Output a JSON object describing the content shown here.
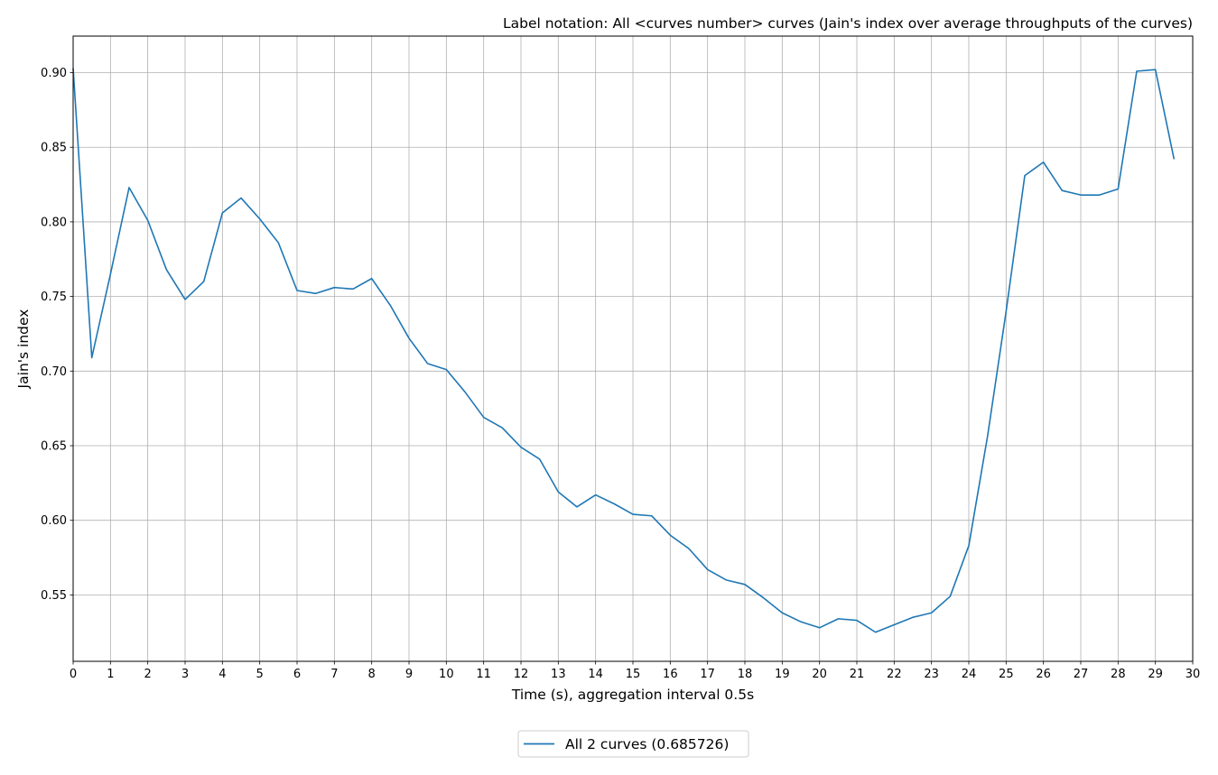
{
  "chart_data": {
    "type": "line",
    "title": "Label notation: All <curves number> curves (Jain's index over average throughputs of the curves)",
    "xlabel": "Time (s), aggregation interval 0.5s",
    "ylabel": "Jain's index",
    "xlim": [
      0,
      30
    ],
    "ylim": [
      0.5055,
      0.9245
    ],
    "x_ticks": [
      0,
      1,
      2,
      3,
      4,
      5,
      6,
      7,
      8,
      9,
      10,
      11,
      12,
      13,
      14,
      15,
      16,
      17,
      18,
      19,
      20,
      21,
      22,
      23,
      24,
      25,
      26,
      27,
      28,
      29,
      30
    ],
    "x_tick_labels": [
      "0",
      "1",
      "2",
      "3",
      "4",
      "5",
      "6",
      "7",
      "8",
      "9",
      "10",
      "11",
      "12",
      "13",
      "14",
      "15",
      "16",
      "17",
      "18",
      "19",
      "20",
      "21",
      "22",
      "23",
      "24",
      "25",
      "26",
      "27",
      "28",
      "29",
      "30"
    ],
    "y_ticks": [
      0.55,
      0.6,
      0.65,
      0.7,
      0.75,
      0.8,
      0.85,
      0.9
    ],
    "y_tick_labels": [
      "0.55",
      "0.60",
      "0.65",
      "0.70",
      "0.75",
      "0.80",
      "0.85",
      "0.90"
    ],
    "grid": true,
    "legend_position": "bottom-center",
    "x": [
      0,
      0.5,
      1,
      1.5,
      2,
      2.5,
      3,
      3.5,
      4,
      4.5,
      5,
      5.5,
      6,
      6.5,
      7,
      7.5,
      8,
      8.5,
      9,
      9.5,
      10,
      10.5,
      11,
      11.5,
      12,
      12.5,
      13,
      13.5,
      14,
      14.5,
      15,
      15.5,
      16,
      16.5,
      17,
      17.5,
      18,
      18.5,
      19,
      19.5,
      20,
      20.5,
      21,
      21.5,
      22,
      22.5,
      23,
      23.5,
      24,
      24.5,
      25,
      25.5,
      26,
      26.5,
      27,
      27.5,
      28,
      28.5,
      29,
      29.5
    ],
    "series": [
      {
        "name": "All 2 curves (0.685726)",
        "color": "#1f77b4",
        "values": [
          0.903,
          0.709,
          0.765,
          0.823,
          0.801,
          0.768,
          0.748,
          0.76,
          0.806,
          0.816,
          0.802,
          0.786,
          0.754,
          0.752,
          0.756,
          0.755,
          0.762,
          0.744,
          0.722,
          0.705,
          0.701,
          0.686,
          0.669,
          0.662,
          0.649,
          0.641,
          0.619,
          0.609,
          0.617,
          0.611,
          0.604,
          0.603,
          0.59,
          0.581,
          0.567,
          0.56,
          0.557,
          0.548,
          0.538,
          0.532,
          0.528,
          0.534,
          0.533,
          0.525,
          0.53,
          0.535,
          0.538,
          0.549,
          0.583,
          0.656,
          0.74,
          0.831,
          0.84,
          0.821,
          0.818,
          0.818,
          0.822,
          0.901,
          0.902,
          0.842
        ]
      }
    ]
  }
}
